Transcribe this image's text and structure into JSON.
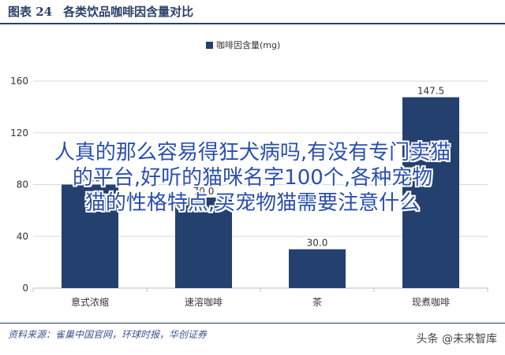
{
  "header": {
    "figure_number": "图表 24",
    "figure_title": "各类饮品咖啡因含量对比"
  },
  "footer": {
    "source": "资料来源：雀巢中国官网，环球时报，华创证券",
    "brand": "头条 @未来智库"
  },
  "overlay": {
    "lines": [
      "人真的那么容易得狂犬病吗,有没有专门卖猫",
      "的平台,好听的猫咪名字100个,各种宠物",
      "猫的性格特点,买宠物猫需要注意什么"
    ]
  },
  "chart_data": {
    "type": "bar",
    "categories": [
      "意式浓缩",
      "速溶咖啡",
      "茶",
      "现煮咖啡"
    ],
    "series": [
      {
        "name": "咖啡因含量(mg)",
        "values": [
          80.0,
          70.0,
          30.0,
          147.5
        ]
      }
    ],
    "value_labels": [
      "80.0",
      "70.0",
      "30.0",
      "147.5"
    ],
    "yticks": [
      "0",
      "40",
      "80",
      "120",
      "160"
    ],
    "ylim": [
      0,
      160
    ],
    "grid": true,
    "legend": "top-center",
    "colors": {
      "bar": "#24406f",
      "grid": "#d9d9d9",
      "axis": "#bfbfbf",
      "text": "#333333",
      "header": "#2a3f6a"
    }
  }
}
